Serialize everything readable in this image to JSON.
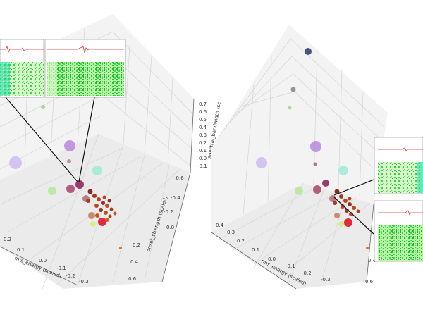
{
  "chart_data": [
    {
      "type": "scatter",
      "projection": "3d",
      "axes": {
        "x": {
          "label": "rms_energy (scaled)",
          "ticks": [
            "0.2",
            "0.1",
            "0.0",
            "-0.1",
            "-0.2",
            "-0.3"
          ]
        },
        "y": {
          "label": "onset_strength (scaled)",
          "ticks": [
            "-0.6",
            "-0.4",
            "-0.2",
            "0.0",
            "0.2",
            "0.4",
            "0.6"
          ]
        },
        "z": {
          "label": "spectral_bandwidth (sc",
          "ticks": [
            "0.7",
            "0.6",
            "0.5",
            "0.4",
            "0.3",
            "0.2",
            "0.1",
            "0.0",
            "-0.1"
          ]
        }
      },
      "grid": true,
      "legend": "none",
      "points": [
        {
          "x": 0.03,
          "y": -0.55,
          "z": 0.3,
          "size": "large",
          "color": "#b07ad8"
        },
        {
          "x": 0.25,
          "y": -0.25,
          "z": 0.28,
          "size": "large",
          "color": "#c9b6f2"
        },
        {
          "x": -0.06,
          "y": -0.1,
          "z": 0.22,
          "size": "large",
          "color": "#9ee8d6"
        },
        {
          "x": 0.14,
          "y": -0.3,
          "z": 0.35,
          "size": "small",
          "color": "#9acd8a"
        },
        {
          "x": 0.12,
          "y": -0.05,
          "z": 0.02,
          "size": "medium",
          "color": "#b6e89a"
        },
        {
          "x": 0.02,
          "y": -0.05,
          "z": 0.02,
          "size": "medium",
          "color": "#a8436d"
        },
        {
          "x": 0.0,
          "y": -0.02,
          "z": 0.0,
          "size": "medium",
          "color": "#8e2a5a"
        },
        {
          "x": -0.02,
          "y": 0.02,
          "z": 0.0,
          "size": "medium",
          "color": "#b06a7a"
        },
        {
          "x": -0.05,
          "y": 0.25,
          "z": 0.0,
          "size": "medium",
          "color": "#e22a3a"
        },
        {
          "x": -0.02,
          "y": 0.22,
          "z": 0.0,
          "size": "small",
          "color": "#d9ec7a"
        },
        {
          "x": -0.06,
          "y": 0.55,
          "z": 0.0,
          "size": "tiny",
          "color": "#d07a3a"
        }
      ],
      "inset_panels": 2
    },
    {
      "type": "scatter",
      "projection": "3d",
      "axes": {
        "x": {
          "label": "rms_energy (scaled)",
          "ticks": [
            "0.4",
            "0.3",
            "0.2",
            "0.1",
            "0.0",
            "-0.1",
            "-0.2",
            "-0.3"
          ]
        },
        "y": {
          "label": "",
          "ticks": [
            "0.4",
            "0.6"
          ]
        },
        "z": {
          "label": "",
          "ticks": []
        }
      },
      "grid": true,
      "legend": "none",
      "points": [
        {
          "x": 0.02,
          "y": -0.5,
          "z": 0.75,
          "size": "medium",
          "color": "#3d3f78"
        },
        {
          "x": 0.05,
          "y": -0.5,
          "z": 0.55,
          "size": "small",
          "color": "#8a8a8a"
        },
        {
          "x": 0.05,
          "y": -0.5,
          "z": 0.4,
          "size": "tiny",
          "color": "#9acd8a"
        },
        {
          "x": 0.3,
          "y": -0.2,
          "z": 0.2,
          "size": "large",
          "color": "#c9b6f2"
        },
        {
          "x": 0.1,
          "y": -0.25,
          "z": 0.25,
          "size": "large",
          "color": "#b07ad8"
        },
        {
          "x": -0.05,
          "y": -0.05,
          "z": 0.2,
          "size": "large",
          "color": "#9ee8d6"
        },
        {
          "x": 0.1,
          "y": 0.0,
          "z": 0.02,
          "size": "medium",
          "color": "#b6e89a"
        },
        {
          "x": 0.02,
          "y": 0.0,
          "z": 0.02,
          "size": "medium",
          "color": "#a8436d"
        },
        {
          "x": 0.0,
          "y": 0.05,
          "z": 0.0,
          "size": "medium",
          "color": "#8e2a5a"
        },
        {
          "x": -0.05,
          "y": 0.3,
          "z": 0.0,
          "size": "medium",
          "color": "#e22a3a"
        },
        {
          "x": -0.02,
          "y": 0.28,
          "z": 0.0,
          "size": "small",
          "color": "#d9ec7a"
        },
        {
          "x": -0.06,
          "y": 0.6,
          "z": 0.0,
          "size": "tiny",
          "color": "#d07a3a"
        }
      ],
      "inset_panels": 2
    }
  ]
}
